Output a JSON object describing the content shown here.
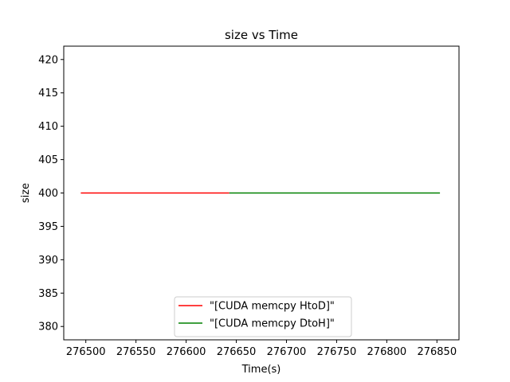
{
  "chart_data": {
    "type": "line",
    "title": "size vs Time",
    "xlabel": "Time(s)",
    "ylabel": "size",
    "xlim": [
      276478,
      276872
    ],
    "ylim": [
      378,
      422
    ],
    "xticks": [
      276500,
      276550,
      276600,
      276650,
      276700,
      276750,
      276800,
      276850
    ],
    "yticks": [
      380,
      385,
      390,
      395,
      400,
      405,
      410,
      415,
      420
    ],
    "grid": false,
    "legend_position": "lower center",
    "series": [
      {
        "name": "\"[CUDA memcpy HtoD]\"",
        "color": "#ff0000",
        "x": [
          276495,
          276643
        ],
        "y": [
          400,
          400
        ]
      },
      {
        "name": "\"[CUDA memcpy DtoH]\"",
        "color": "#008000",
        "x": [
          276643,
          276853
        ],
        "y": [
          400,
          400
        ]
      }
    ]
  }
}
